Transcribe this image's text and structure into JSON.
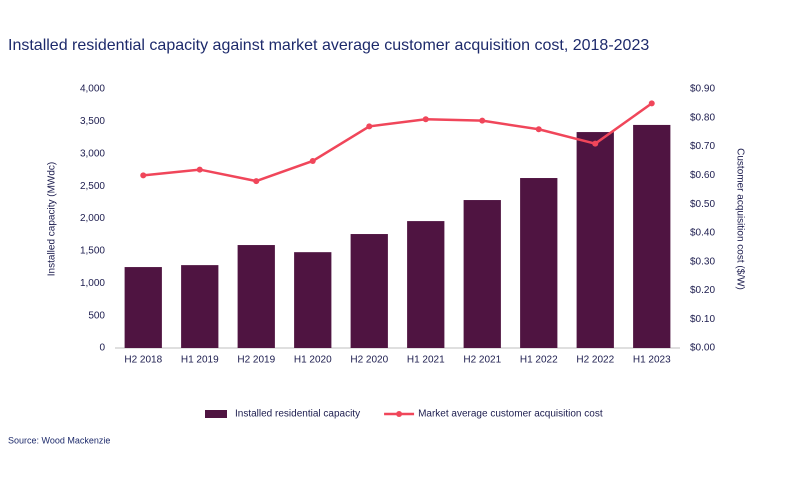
{
  "chart_data": {
    "type": "bar-line",
    "title": "Installed residential capacity against market average customer acquisition cost, 2018-2023",
    "source": "Source: Wood Mackenzie",
    "y_label": "Installed capacity (MWdc)",
    "y2_label": "Customer acquisition cost ($/W)",
    "categories": [
      "H2 2018",
      "H1 2019",
      "H2 2019",
      "H1 2020",
      "H2 2020",
      "H1 2021",
      "H2 2021",
      "H1 2022",
      "H2 2022",
      "H1 2023"
    ],
    "series": [
      {
        "name": "Installed residential capacity",
        "kind": "bar",
        "color": "#4f1441",
        "values": [
          1250,
          1280,
          1590,
          1480,
          1760,
          1960,
          2285,
          2625,
          3335,
          3445
        ]
      },
      {
        "name": "Market average customer acquisition cost",
        "kind": "line",
        "axis": "y2",
        "color": "#f0465a",
        "values": [
          0.6,
          0.62,
          0.58,
          0.65,
          0.77,
          0.795,
          0.79,
          0.76,
          0.71,
          0.85
        ]
      }
    ],
    "ylim": [
      0,
      4000
    ],
    "yticks": [
      0,
      500,
      {
        "value": 1000,
        "label": "1,000"
      },
      {
        "value": 1500,
        "label": "1,500"
      },
      {
        "value": 2000,
        "label": "2,000"
      },
      {
        "value": 2500,
        "label": "2,500"
      },
      {
        "value": 3000,
        "label": "3,000"
      },
      {
        "value": 3500,
        "label": "3,500"
      },
      {
        "value": 4000,
        "label": "4,000"
      }
    ],
    "y2lim": [
      0,
      0.9
    ],
    "y2ticks": [
      {
        "value": 0,
        "label": "$0.00"
      },
      {
        "value": 0.1,
        "label": "$0.10"
      },
      {
        "value": 0.2,
        "label": "$0.20"
      },
      {
        "value": 0.3,
        "label": "$0.30"
      },
      {
        "value": 0.4,
        "label": "$0.40"
      },
      {
        "value": 0.5,
        "label": "$0.50"
      },
      {
        "value": 0.6,
        "label": "$0.60"
      },
      {
        "value": 0.7,
        "label": "$0.70"
      },
      {
        "value": 0.8,
        "label": "$0.80"
      },
      {
        "value": 0.9,
        "label": "$0.90"
      }
    ],
    "legend": "bottom"
  }
}
